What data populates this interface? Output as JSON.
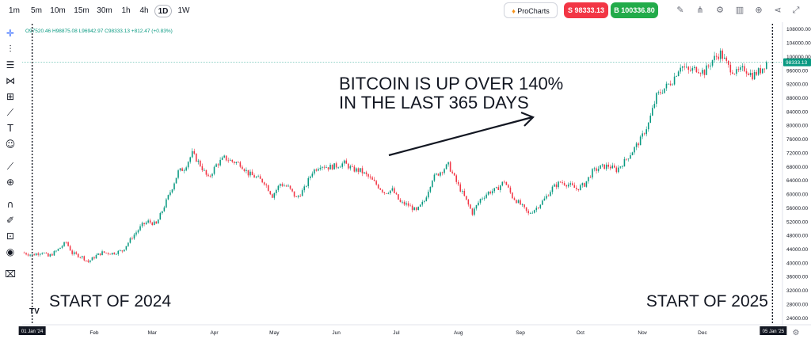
{
  "toolbar": {
    "timeframes": [
      "1m",
      "5m",
      "10m",
      "15m",
      "30m",
      "1h",
      "4h",
      "1D",
      "1W"
    ],
    "active_timeframe": "1D",
    "prochart_label": "ProCharts",
    "sell_label": "S 98333.13",
    "buy_label": "B 100336.80",
    "icons": [
      "pencil-icon",
      "signal-icon",
      "gear-icon",
      "indicators-icon",
      "plus-circle-icon",
      "share-icon",
      "fullscreen-icon"
    ]
  },
  "left_toolbar": {
    "icons": [
      "crosshair-icon",
      "dot-line-icon",
      "horizontal-lines-icon",
      "pattern-icon",
      "fib-icon",
      "brush-icon",
      "text-icon",
      "emoji-icon",
      "ruler-icon",
      "zoom-icon",
      "magnet-icon",
      "lock-drawing-icon",
      "lock-icon",
      "eye-icon",
      "trash-icon"
    ]
  },
  "ohlc": {
    "open": "O97520.46",
    "high": "H98875.08",
    "low": "L96942.97",
    "close": "C98333.13",
    "change": "+812.47 (+0.83%)"
  },
  "colors": {
    "up": "#089981",
    "down": "#f23645",
    "price_line": "#089981",
    "text": "#131722"
  },
  "chart_data": {
    "type": "candlestick",
    "title": "",
    "annotation": [
      "BITCOIN IS UP OVER 140%",
      "IN THE LAST 365 DAYS"
    ],
    "markers": [
      {
        "label": "START OF 2024",
        "date_label": "01 Jan '24"
      },
      {
        "label": "START OF 2025",
        "date_label": "05 Jan '25"
      }
    ],
    "current_price": "98333.13",
    "x_ticks": [
      "Feb",
      "Mar",
      "Apr",
      "May",
      "Jun",
      "Jul",
      "Aug",
      "Sep",
      "Oct",
      "Nov",
      "Dec"
    ],
    "y_ticks": [
      "108000.00",
      "104000.00",
      "100000.00",
      "96000.00",
      "92000.00",
      "88000.00",
      "84000.00",
      "80000.00",
      "76000.00",
      "72000.00",
      "68000.00",
      "64000.00",
      "60000.00",
      "56000.00",
      "52000.00",
      "48000.00",
      "44000.00",
      "40000.00",
      "36000.00",
      "32000.00",
      "28000.00",
      "24000.00"
    ],
    "ylim": [
      22000,
      110000
    ],
    "xlim_days": [
      -5,
      375
    ],
    "close_path": [
      [
        -5,
        43000
      ],
      [
        0,
        42300
      ],
      [
        5,
        43200
      ],
      [
        8,
        41800
      ],
      [
        12,
        43400
      ],
      [
        17,
        46000
      ],
      [
        20,
        42800
      ],
      [
        25,
        41700
      ],
      [
        28,
        40300
      ],
      [
        32,
        42100
      ],
      [
        35,
        43000
      ],
      [
        40,
        42800
      ],
      [
        45,
        43500
      ],
      [
        50,
        47500
      ],
      [
        55,
        51000
      ],
      [
        58,
        52000
      ],
      [
        62,
        51200
      ],
      [
        66,
        56500
      ],
      [
        70,
        62000
      ],
      [
        73,
        66500
      ],
      [
        76,
        67500
      ],
      [
        80,
        71800
      ],
      [
        84,
        68500
      ],
      [
        88,
        64500
      ],
      [
        92,
        68500
      ],
      [
        96,
        70500
      ],
      [
        100,
        69500
      ],
      [
        104,
        68800
      ],
      [
        108,
        66000
      ],
      [
        112,
        64800
      ],
      [
        116,
        63500
      ],
      [
        120,
        59500
      ],
      [
        124,
        63000
      ],
      [
        128,
        62000
      ],
      [
        132,
        58800
      ],
      [
        136,
        61500
      ],
      [
        140,
        66500
      ],
      [
        144,
        68500
      ],
      [
        148,
        67800
      ],
      [
        152,
        68200
      ],
      [
        156,
        69000
      ],
      [
        160,
        67200
      ],
      [
        164,
        66800
      ],
      [
        168,
        65000
      ],
      [
        172,
        62800
      ],
      [
        176,
        60500
      ],
      [
        180,
        61200
      ],
      [
        184,
        57500
      ],
      [
        188,
        56800
      ],
      [
        192,
        55000
      ],
      [
        196,
        58000
      ],
      [
        200,
        64500
      ],
      [
        204,
        66500
      ],
      [
        208,
        68500
      ],
      [
        212,
        63500
      ],
      [
        216,
        59200
      ],
      [
        220,
        54500
      ],
      [
        224,
        58500
      ],
      [
        228,
        60500
      ],
      [
        232,
        61300
      ],
      [
        236,
        63800
      ],
      [
        240,
        59200
      ],
      [
        244,
        57000
      ],
      [
        248,
        54200
      ],
      [
        252,
        56000
      ],
      [
        256,
        58500
      ],
      [
        260,
        61800
      ],
      [
        264,
        63500
      ],
      [
        268,
        62800
      ],
      [
        272,
        61500
      ],
      [
        276,
        62800
      ],
      [
        280,
        66500
      ],
      [
        284,
        67800
      ],
      [
        288,
        68200
      ],
      [
        292,
        67000
      ],
      [
        296,
        69500
      ],
      [
        300,
        72500
      ],
      [
        304,
        75800
      ],
      [
        308,
        80500
      ],
      [
        312,
        88500
      ],
      [
        316,
        90800
      ],
      [
        320,
        93000
      ],
      [
        324,
        97500
      ],
      [
        328,
        95800
      ],
      [
        332,
        96500
      ],
      [
        336,
        95500
      ],
      [
        340,
        99000
      ],
      [
        344,
        101000
      ],
      [
        348,
        97000
      ],
      [
        352,
        95200
      ],
      [
        356,
        96500
      ],
      [
        360,
        94500
      ],
      [
        364,
        96000
      ],
      [
        367,
        98333
      ]
    ]
  }
}
